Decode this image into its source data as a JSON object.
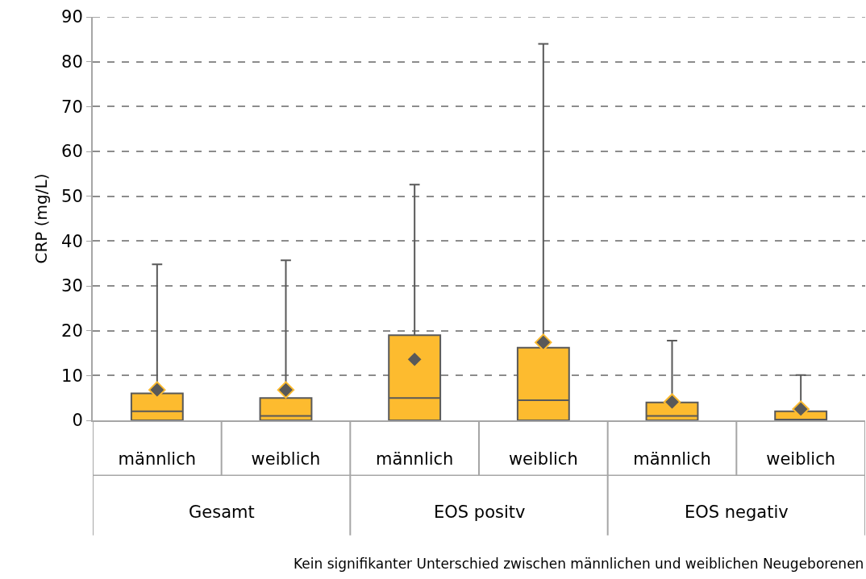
{
  "chart_data": {
    "type": "box",
    "ylabel": "CRP (mg/L)",
    "categories": [
      "männlich",
      "weiblich",
      "männlich",
      "weiblich",
      "männlich",
      "weiblich"
    ],
    "series": [
      {
        "color": "#fdbb2f",
        "boxes": [
          {
            "q1": 0,
            "median": 2,
            "q3": 6,
            "high": 34.8,
            "mean": 6.8
          },
          {
            "q1": 0,
            "median": 1,
            "q3": 5,
            "high": 35.7,
            "mean": 6.8
          },
          {
            "q1": 0,
            "median": 5,
            "q3": 19,
            "high": 52.6,
            "mean": 13.6
          },
          {
            "q1": 0,
            "median": 4.5,
            "q3": 16.2,
            "high": 84,
            "mean": 17.4
          },
          {
            "q1": 0,
            "median": 1,
            "q3": 4,
            "high": 17.8,
            "mean": 4.1
          },
          {
            "q1": 0,
            "median": 0,
            "q3": 2,
            "high": 10.1,
            "mean": 2.5
          }
        ]
      }
    ],
    "ylim": [
      0,
      90
    ],
    "yticks": [
      0,
      10,
      20,
      30,
      40,
      50,
      60,
      70,
      80,
      90
    ],
    "grid": "y",
    "marker": "diamond",
    "annotations": [
      "Gesamt",
      "EOS positv",
      "EOS negativ",
      "Kein signifikanter Unterschied zwischen männlichen und weiblichen Neugeborenen"
    ]
  }
}
